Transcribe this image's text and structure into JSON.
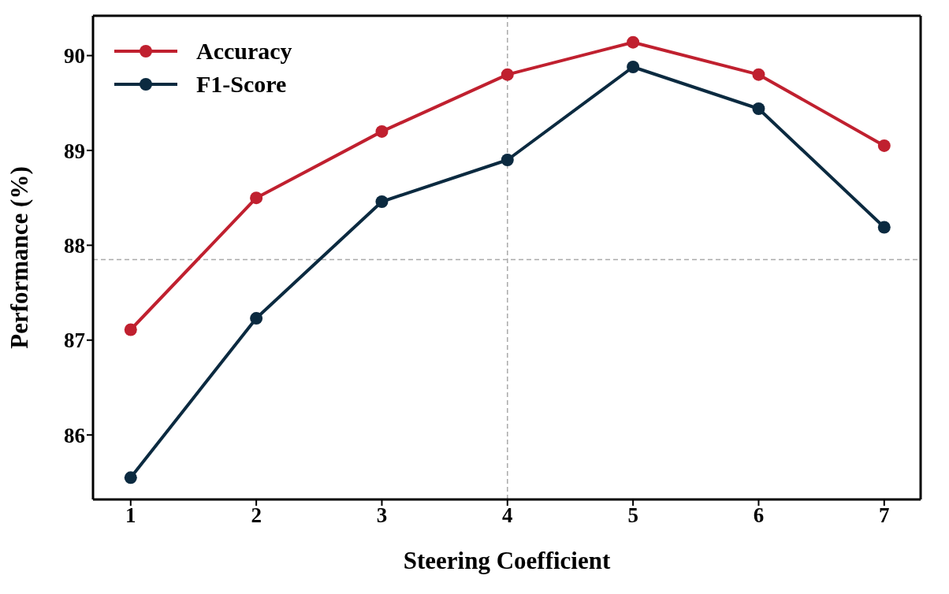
{
  "chart_data": {
    "type": "line",
    "xlabel": "Steering Coefficient",
    "ylabel": "Performance (%)",
    "x": [
      1,
      2,
      3,
      4,
      5,
      6,
      7
    ],
    "series": [
      {
        "name": "Accuracy",
        "color": "#c0202f",
        "values": [
          87.11,
          88.5,
          89.2,
          89.8,
          90.14,
          89.8,
          89.05
        ]
      },
      {
        "name": "F1-Score",
        "color": "#0b2a40",
        "values": [
          85.55,
          87.23,
          88.46,
          88.9,
          89.88,
          89.44,
          88.19
        ]
      }
    ],
    "xlim": [
      0.7,
      7.29
    ],
    "xticks": [
      1,
      2,
      3,
      4,
      5,
      6,
      7
    ],
    "ylim": [
      85.32,
      90.42
    ],
    "yticks": [
      86,
      87,
      88,
      89,
      90
    ],
    "ref_lines": [
      {
        "axis": "x",
        "value": 4,
        "color": "#aaaaaa",
        "line_style": "dashed"
      },
      {
        "axis": "y",
        "value": 87.85,
        "color": "#aaaaaa",
        "line_style": "dashed"
      }
    ],
    "grid": false,
    "legend": "top left",
    "marker": "circle",
    "line_style": "solid"
  }
}
